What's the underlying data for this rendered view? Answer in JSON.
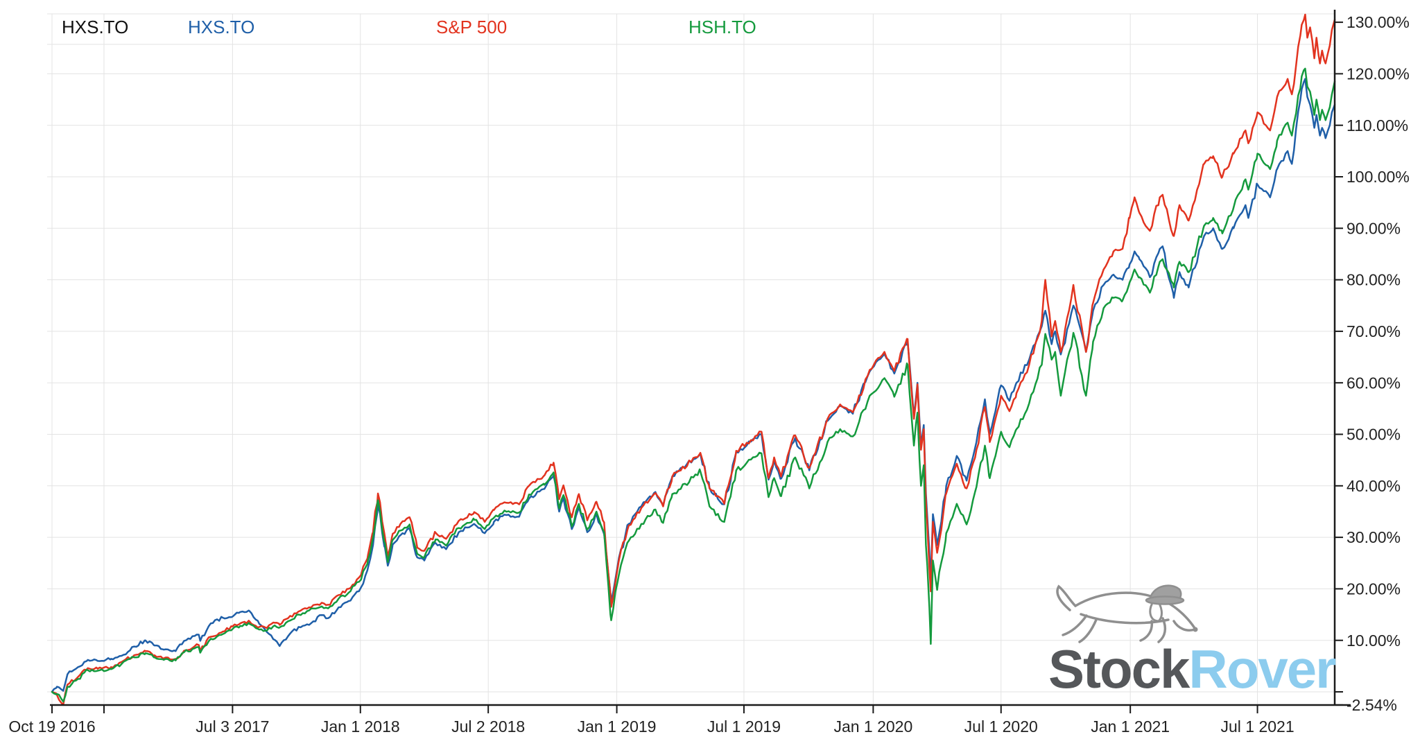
{
  "legend": {
    "items": [
      {
        "label": "HXS.TO",
        "color": "#111111"
      },
      {
        "label": "HXS.TO",
        "color": "#1f5fa8"
      },
      {
        "label": "S&P 500",
        "color": "#e2331f"
      },
      {
        "label": "HSH.TO",
        "color": "#149a3d"
      }
    ]
  },
  "watermark": {
    "text_primary": "Stock",
    "text_secondary": "Rover",
    "color_primary": "#55575a",
    "color_secondary": "#8cccee"
  },
  "chart_data": {
    "type": "line",
    "title": "",
    "xlabel": "",
    "ylabel": "",
    "grid": true,
    "legend_position": "top",
    "y_axis_side": "right",
    "x_range": [
      "2016-10-19",
      "2021-10-19"
    ],
    "ylim": [
      -2.54,
      132.3
    ],
    "y_ticks": {
      "values": [
        130,
        120,
        110,
        100,
        90,
        80,
        70,
        60,
        50,
        40,
        30,
        20,
        10
      ],
      "labels": [
        "130.00%",
        "120.00%",
        "110.00%",
        "100.00%",
        "90.00%",
        "80.00%",
        "70.00%",
        "60.00%",
        "50.00%",
        "40.00%",
        "30.00%",
        "20.00%",
        "10.00%"
      ],
      "extra_ticks": [
        {
          "value": 0,
          "label": ""
        },
        {
          "value": -2.54,
          "label": "-2.54%"
        }
      ]
    },
    "x_ticks": [
      {
        "date": "2016-10-19",
        "label": "Oct 19 2016"
      },
      {
        "date": "2017-01-01",
        "label": ""
      },
      {
        "date": "2017-07-03",
        "label": "Jul 3 2017"
      },
      {
        "date": "2018-01-01",
        "label": "Jan 1 2018"
      },
      {
        "date": "2018-07-02",
        "label": "Jul 2 2018"
      },
      {
        "date": "2019-01-01",
        "label": "Jan 1 2019"
      },
      {
        "date": "2019-07-01",
        "label": "Jul 1 2019"
      },
      {
        "date": "2020-01-01",
        "label": "Jan 1 2020"
      },
      {
        "date": "2020-07-01",
        "label": "Jul 1 2020"
      },
      {
        "date": "2021-01-01",
        "label": "Jan 1 2021"
      },
      {
        "date": "2021-07-01",
        "label": "Jul 1 2021"
      }
    ],
    "series_meta": [
      {
        "name": "HXS.TO",
        "color": "#1f5fa8"
      },
      {
        "name": "S&P 500",
        "color": "#e2331f"
      },
      {
        "name": "HSH.TO",
        "color": "#149a3d"
      }
    ],
    "columns": [
      "date",
      "HXS.TO",
      "S&P 500",
      "HSH.TO"
    ],
    "points": [
      [
        "2016-10-19",
        0,
        0,
        0
      ],
      [
        "2016-10-26",
        1.0,
        -0.6,
        -0.4
      ],
      [
        "2016-11-04",
        0.2,
        -2.54,
        -1.9
      ],
      [
        "2016-11-10",
        3.4,
        1.4,
        1.0
      ],
      [
        "2016-11-25",
        4.8,
        2.9,
        2.5
      ],
      [
        "2016-12-09",
        6.2,
        4.6,
        4.2
      ],
      [
        "2016-12-23",
        6.0,
        4.5,
        4.1
      ],
      [
        "2017-01-11",
        6.4,
        4.8,
        4.4
      ],
      [
        "2017-01-26",
        7.0,
        5.8,
        5.4
      ],
      [
        "2017-02-13",
        8.8,
        7.1,
        6.7
      ],
      [
        "2017-03-01",
        10.0,
        7.9,
        7.5
      ],
      [
        "2017-03-14",
        9.0,
        7.1,
        6.7
      ],
      [
        "2017-03-27",
        8.2,
        6.5,
        6.2
      ],
      [
        "2017-04-13",
        7.9,
        6.4,
        6.1
      ],
      [
        "2017-04-25",
        9.9,
        8.0,
        7.7
      ],
      [
        "2017-05-16",
        11.1,
        9.1,
        8.7
      ],
      [
        "2017-05-18",
        9.9,
        7.9,
        7.6
      ],
      [
        "2017-06-02",
        13.3,
        10.7,
        10.3
      ],
      [
        "2017-06-19",
        14.4,
        11.7,
        11.2
      ],
      [
        "2017-07-03",
        14.6,
        12.7,
        12.2
      ],
      [
        "2017-07-14",
        15.5,
        13.3,
        12.8
      ],
      [
        "2017-07-27",
        15.7,
        13.7,
        13.2
      ],
      [
        "2017-08-10",
        13.2,
        12.6,
        12.1
      ],
      [
        "2017-08-21",
        11.6,
        12.4,
        11.9
      ],
      [
        "2017-09-01",
        10.1,
        13.4,
        12.9
      ],
      [
        "2017-09-08",
        8.9,
        13.0,
        12.5
      ],
      [
        "2017-09-20",
        10.8,
        14.3,
        13.7
      ],
      [
        "2017-10-05",
        12.6,
        15.6,
        15.0
      ],
      [
        "2017-10-20",
        13.0,
        16.4,
        15.8
      ],
      [
        "2017-11-07",
        14.9,
        17.3,
        16.6
      ],
      [
        "2017-11-16",
        14.3,
        16.9,
        16.2
      ],
      [
        "2017-12-01",
        16.4,
        18.8,
        18.1
      ],
      [
        "2017-12-15",
        17.6,
        20.0,
        19.2
      ],
      [
        "2018-01-02",
        20.3,
        22.7,
        21.8
      ],
      [
        "2018-01-12",
        24.2,
        26.7,
        25.7
      ],
      [
        "2018-01-19",
        28.5,
        31.0,
        29.9
      ],
      [
        "2018-01-26",
        36.3,
        38.5,
        37.2
      ],
      [
        "2018-02-05",
        28.0,
        30.0,
        28.9
      ],
      [
        "2018-02-09",
        24.5,
        26.3,
        25.2
      ],
      [
        "2018-02-16",
        28.6,
        30.7,
        29.5
      ],
      [
        "2018-02-27",
        30.4,
        32.6,
        31.3
      ],
      [
        "2018-03-12",
        31.6,
        33.9,
        32.5
      ],
      [
        "2018-03-23",
        26.1,
        28.0,
        26.8
      ],
      [
        "2018-04-02",
        25.5,
        27.4,
        26.2
      ],
      [
        "2018-04-18",
        28.9,
        30.9,
        29.6
      ],
      [
        "2018-05-03",
        27.7,
        29.7,
        28.4
      ],
      [
        "2018-05-21",
        31.0,
        33.2,
        31.8
      ],
      [
        "2018-06-12",
        32.6,
        34.9,
        33.4
      ],
      [
        "2018-06-27",
        30.8,
        33.0,
        31.6
      ],
      [
        "2018-07-10",
        33.0,
        35.3,
        33.8
      ],
      [
        "2018-07-25",
        34.4,
        36.8,
        35.2
      ],
      [
        "2018-08-15",
        34.0,
        36.4,
        34.8
      ],
      [
        "2018-08-29",
        37.5,
        40.0,
        38.3
      ],
      [
        "2018-09-20",
        39.4,
        42.0,
        40.2
      ],
      [
        "2018-10-03",
        42.0,
        44.5,
        42.6
      ],
      [
        "2018-10-11",
        35.0,
        37.4,
        35.6
      ],
      [
        "2018-10-17",
        37.6,
        40.1,
        38.2
      ],
      [
        "2018-10-29",
        31.6,
        33.9,
        32.1
      ],
      [
        "2018-11-08",
        35.9,
        38.4,
        36.5
      ],
      [
        "2018-11-20",
        31.0,
        33.3,
        31.5
      ],
      [
        "2018-12-03",
        34.5,
        36.9,
        35.0
      ],
      [
        "2018-12-14",
        30.6,
        32.9,
        31.0
      ],
      [
        "2018-12-24",
        17.5,
        16.5,
        13.9
      ],
      [
        "2019-01-04",
        26.0,
        25.5,
        22.7
      ],
      [
        "2019-01-18",
        32.6,
        32.3,
        29.3
      ],
      [
        "2019-02-05",
        36.0,
        35.7,
        32.6
      ],
      [
        "2019-02-25",
        38.8,
        38.6,
        35.4
      ],
      [
        "2019-03-08",
        36.1,
        36.0,
        32.8
      ],
      [
        "2019-03-21",
        41.8,
        41.8,
        38.4
      ],
      [
        "2019-04-30",
        46.2,
        46.4,
        42.8
      ],
      [
        "2019-05-13",
        39.6,
        39.5,
        36.0
      ],
      [
        "2019-06-03",
        36.4,
        36.5,
        33.0
      ],
      [
        "2019-06-20",
        46.5,
        46.8,
        43.0
      ],
      [
        "2019-07-26",
        50.0,
        50.5,
        46.3
      ],
      [
        "2019-08-05",
        41.2,
        41.5,
        37.8
      ],
      [
        "2019-08-13",
        44.9,
        45.5,
        41.5
      ],
      [
        "2019-08-23",
        41.4,
        41.8,
        38.0
      ],
      [
        "2019-09-12",
        49.3,
        49.8,
        45.5
      ],
      [
        "2019-10-02",
        43.0,
        43.5,
        39.5
      ],
      [
        "2019-10-28",
        52.6,
        53.0,
        48.5
      ],
      [
        "2019-11-15",
        55.5,
        55.8,
        51.0
      ],
      [
        "2019-12-03",
        54.0,
        54.3,
        49.6
      ],
      [
        "2019-12-27",
        62.2,
        62.5,
        57.5
      ],
      [
        "2020-01-17",
        65.6,
        66.0,
        60.9
      ],
      [
        "2020-01-31",
        61.8,
        62.3,
        57.3
      ],
      [
        "2020-02-19",
        68.0,
        68.5,
        63.5
      ],
      [
        "2020-02-28",
        53.5,
        53.0,
        47.8
      ],
      [
        "2020-03-04",
        60.0,
        59.7,
        54.2
      ],
      [
        "2020-03-09",
        47.8,
        47.0,
        40.0
      ],
      [
        "2020-03-13",
        51.8,
        51.0,
        44.0
      ],
      [
        "2020-03-16",
        38.5,
        37.0,
        28.5
      ],
      [
        "2020-03-18",
        34.0,
        32.5,
        24.5
      ],
      [
        "2020-03-23",
        21.5,
        19.5,
        9.3
      ],
      [
        "2020-03-26",
        34.5,
        33.0,
        25.5
      ],
      [
        "2020-04-01",
        28.5,
        27.0,
        19.8
      ],
      [
        "2020-04-14",
        40.0,
        38.5,
        30.8
      ],
      [
        "2020-04-29",
        45.8,
        44.3,
        36.5
      ],
      [
        "2020-05-13",
        41.0,
        39.5,
        32.5
      ],
      [
        "2020-05-27",
        48.5,
        47.0,
        39.8
      ],
      [
        "2020-06-08",
        56.8,
        55.3,
        47.8
      ],
      [
        "2020-06-15",
        50.0,
        48.5,
        41.5
      ],
      [
        "2020-06-23",
        54.5,
        53.0,
        45.8
      ],
      [
        "2020-07-01",
        59.5,
        57.5,
        50.5
      ],
      [
        "2020-07-13",
        56.5,
        54.5,
        47.5
      ],
      [
        "2020-07-23",
        60.0,
        58.0,
        51.0
      ],
      [
        "2020-08-10",
        64.5,
        63.5,
        56.0
      ],
      [
        "2020-08-28",
        71.0,
        72.0,
        63.5
      ],
      [
        "2020-09-02",
        74.0,
        80.0,
        69.5
      ],
      [
        "2020-09-11",
        67.5,
        69.0,
        64.5
      ],
      [
        "2020-09-16",
        70.0,
        72.0,
        66.0
      ],
      [
        "2020-09-24",
        65.5,
        66.0,
        57.5
      ],
      [
        "2020-10-12",
        75.0,
        79.0,
        69.7
      ],
      [
        "2020-10-30",
        66.0,
        66.0,
        57.5
      ],
      [
        "2020-11-09",
        74.0,
        75.5,
        68.0
      ],
      [
        "2020-11-24",
        79.0,
        82.0,
        74.5
      ],
      [
        "2020-12-08",
        81.0,
        85.5,
        76.5
      ],
      [
        "2020-12-21",
        80.0,
        86.0,
        76.0
      ],
      [
        "2020-12-31",
        83.0,
        92.0,
        79.5
      ],
      [
        "2021-01-07",
        85.5,
        96.0,
        82.0
      ],
      [
        "2021-01-14",
        84.0,
        93.0,
        80.5
      ],
      [
        "2021-01-29",
        80.5,
        89.5,
        77.5
      ],
      [
        "2021-02-12",
        86.0,
        96.0,
        83.5
      ],
      [
        "2021-02-16",
        86.5,
        96.5,
        84.0
      ],
      [
        "2021-03-04",
        76.5,
        88.5,
        78.5
      ],
      [
        "2021-03-12",
        81.5,
        94.5,
        83.5
      ],
      [
        "2021-03-25",
        78.5,
        91.5,
        81.5
      ],
      [
        "2021-04-16",
        88.5,
        102.5,
        90.5
      ],
      [
        "2021-04-29",
        90.0,
        104.0,
        92.0
      ],
      [
        "2021-05-12",
        86.0,
        100.0,
        89.0
      ],
      [
        "2021-05-28",
        90.0,
        104.5,
        94.0
      ],
      [
        "2021-06-14",
        94.5,
        109.0,
        99.5
      ],
      [
        "2021-06-18",
        92.0,
        106.5,
        97.5
      ],
      [
        "2021-07-01",
        98.5,
        112.5,
        104.5
      ],
      [
        "2021-07-19",
        96.0,
        109.0,
        101.5
      ],
      [
        "2021-07-29",
        101.5,
        115.5,
        107.0
      ],
      [
        "2021-08-13",
        105.0,
        119.0,
        110.5
      ],
      [
        "2021-08-19",
        102.5,
        116.0,
        108.0
      ],
      [
        "2021-09-02",
        117.0,
        129.5,
        119.5
      ],
      [
        "2021-09-07",
        119.0,
        131.5,
        121.0
      ],
      [
        "2021-09-10",
        115.5,
        127.0,
        117.5
      ],
      [
        "2021-09-14",
        114.0,
        129.0,
        116.5
      ],
      [
        "2021-09-20",
        109.5,
        123.0,
        112.0
      ],
      [
        "2021-09-23",
        112.0,
        127.0,
        115.0
      ],
      [
        "2021-09-28",
        108.0,
        122.0,
        111.0
      ],
      [
        "2021-10-01",
        109.5,
        124.5,
        113.0
      ],
      [
        "2021-10-06",
        107.5,
        122.0,
        111.0
      ],
      [
        "2021-10-12",
        110.0,
        125.5,
        113.5
      ],
      [
        "2021-10-15",
        112.5,
        128.5,
        116.0
      ],
      [
        "2021-10-19",
        114.0,
        130.5,
        118.5
      ]
    ]
  }
}
